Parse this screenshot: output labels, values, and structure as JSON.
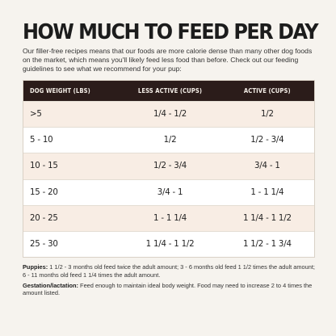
{
  "title": "HOW MUCH TO FEED PER DAY",
  "intro": "Our filler-free recipes means that our foods are more calorie dense than many other dog foods on the market, which means you'll likely feed less food than before. Check out our feeding guidelines to see what we recommend for your pup:",
  "table": {
    "headers": [
      "DOG WEIGHT (LBS)",
      "LESS ACTIVE (CUPS)",
      "ACTIVE (CUPS)"
    ],
    "rows": [
      [
        ">5",
        "1/4 - 1/2",
        "1/2"
      ],
      [
        "5 - 10",
        "1/2",
        "1/2 - 3/4"
      ],
      [
        "10 - 15",
        "1/2 - 3/4",
        "3/4 - 1"
      ],
      [
        "15 - 20",
        "3/4 - 1",
        "1 - 1 1/4"
      ],
      [
        "20 - 25",
        "1 - 1 1/4",
        "1 1/4 - 1 1/2"
      ],
      [
        "25 - 30",
        "1 1/4 - 1 1/2",
        "1 1/2 - 1 3/4"
      ]
    ]
  },
  "notes": {
    "puppies_label": "Puppies:",
    "puppies_text": " 1 1/2 - 3 months old feed twice the adult amount; 3 - 6 months old feed 1 1/2 times the adult amount; 6 - 11 months old feed 1 1/4 times the adult amount.",
    "gestation_label": "Gestation/lactation:",
    "gestation_text": " Feed enough to maintain ideal body weight. Food may need to increase 2 to 4 times the amount listed."
  },
  "colors": {
    "header_bg": "#2b1c1a",
    "odd_row_bg": "#f8ede4",
    "page_bg": "#f6f3ee"
  }
}
